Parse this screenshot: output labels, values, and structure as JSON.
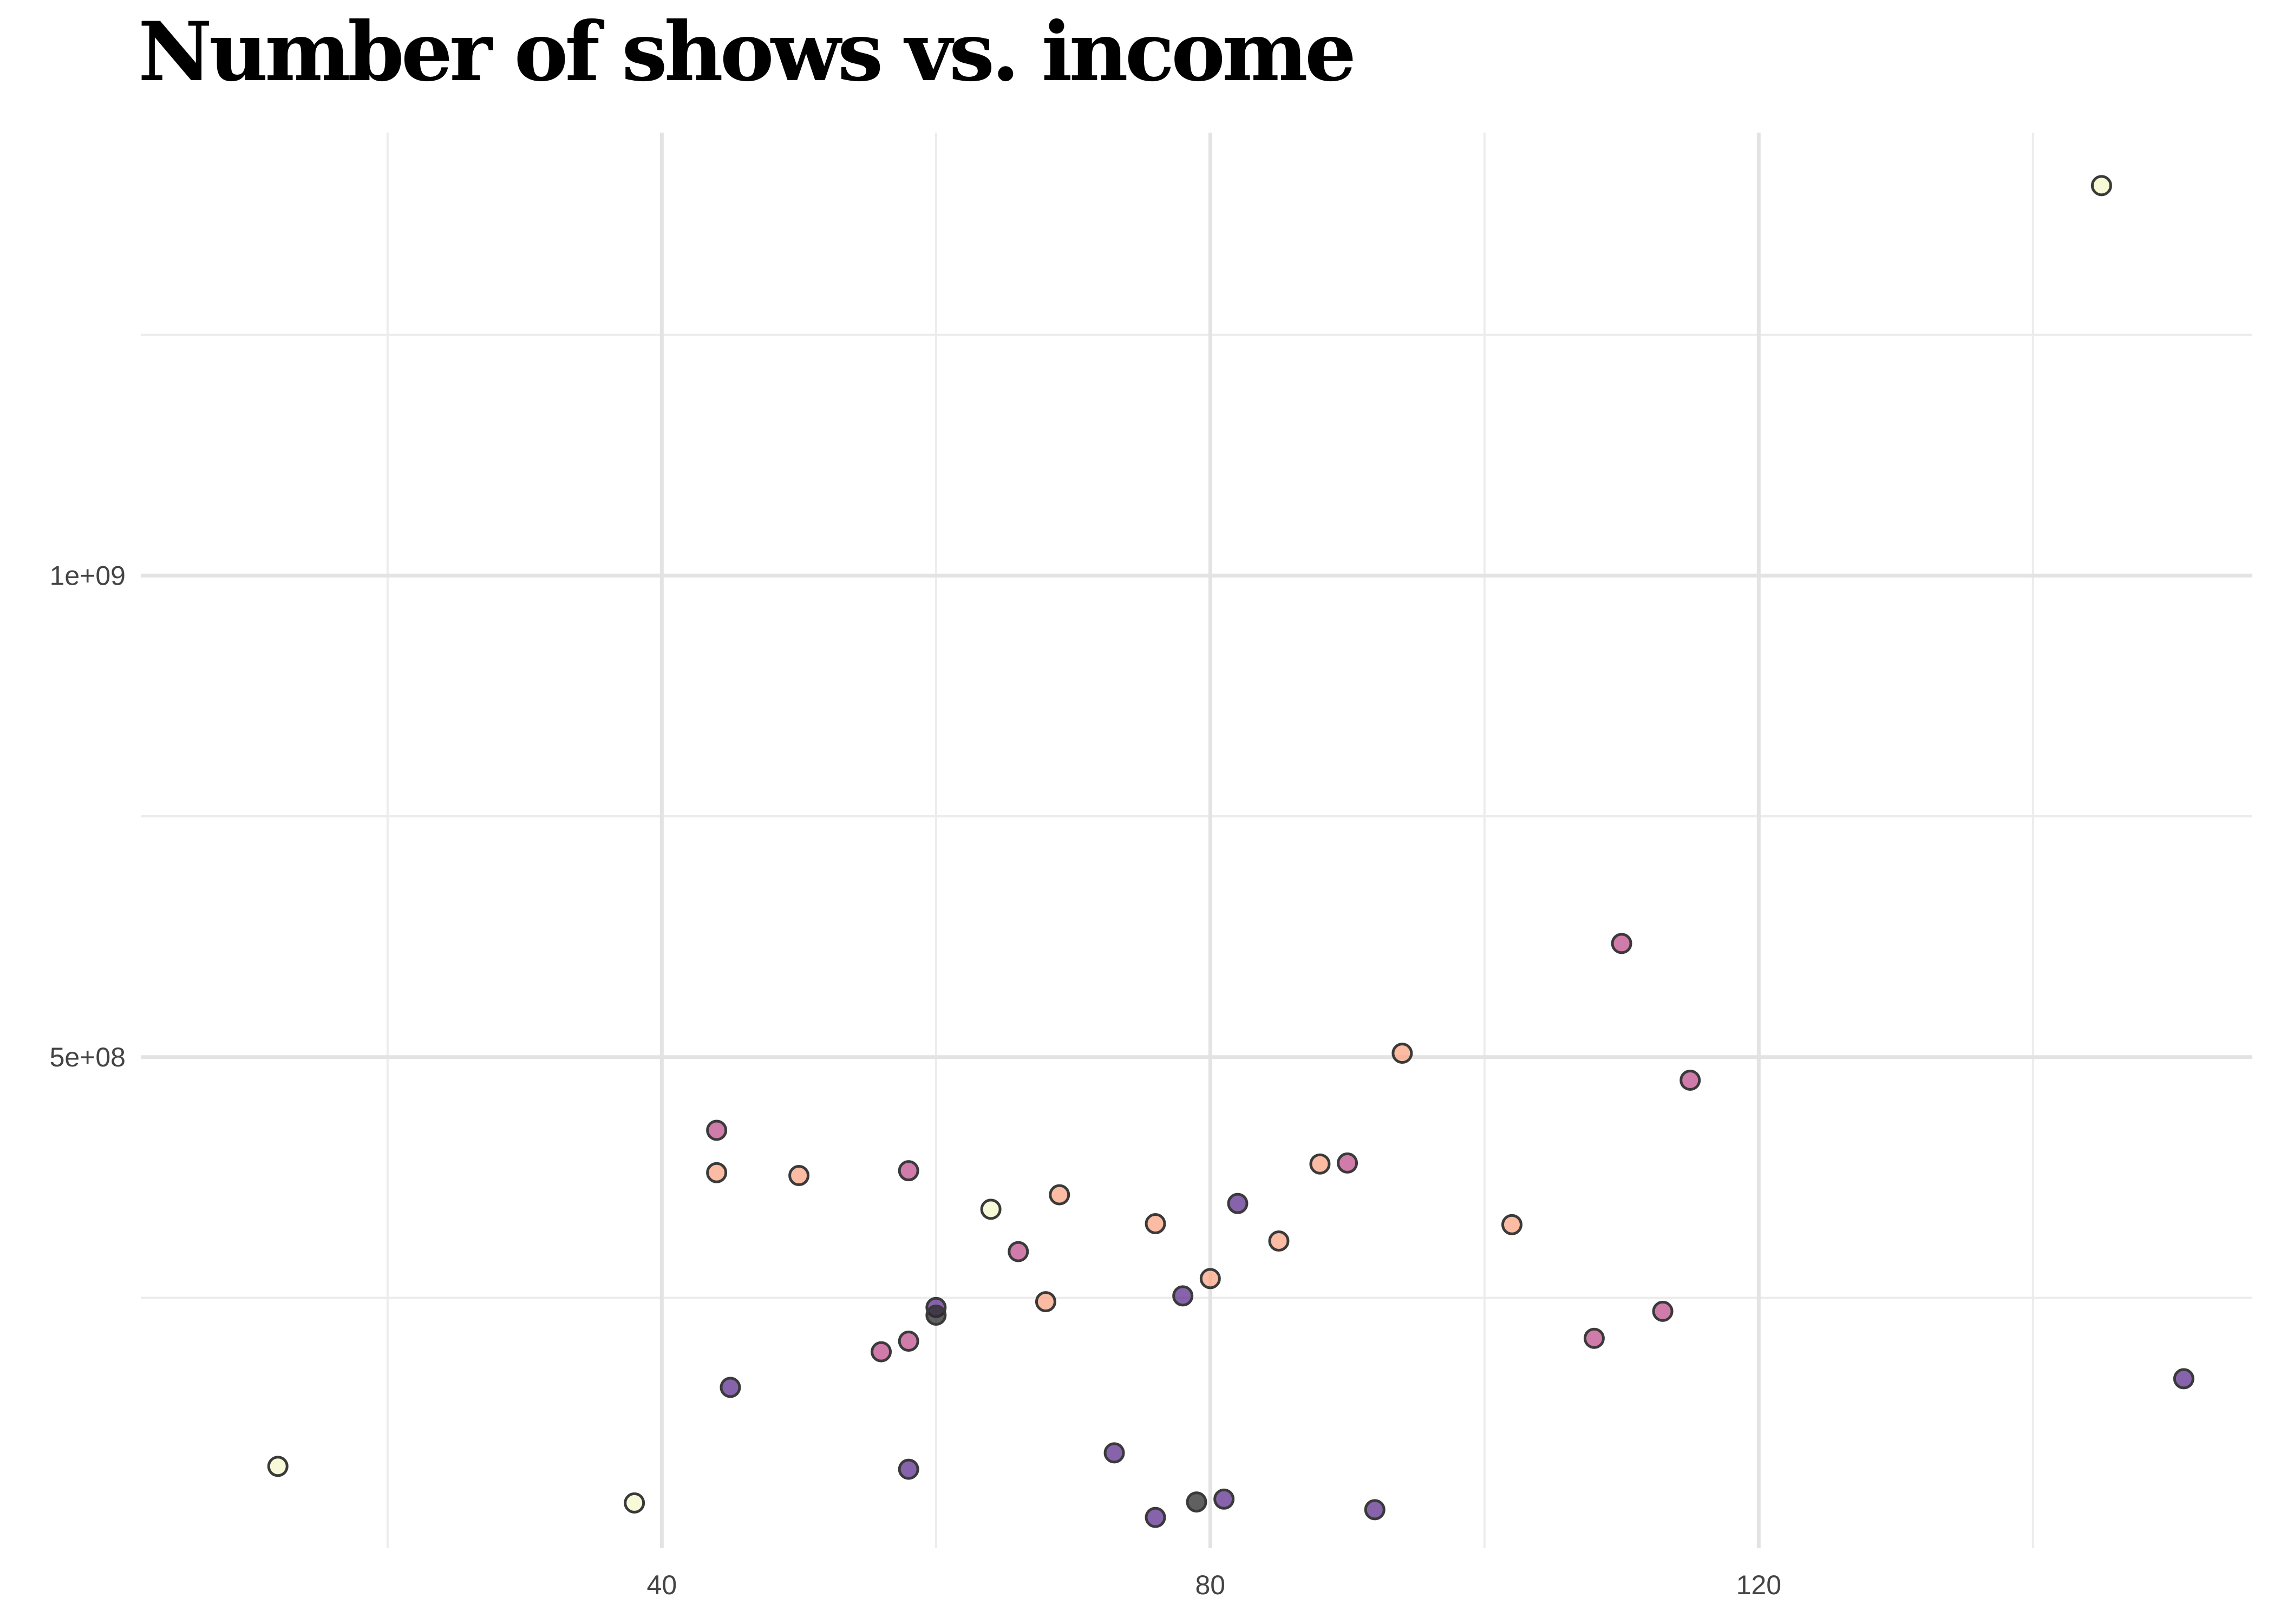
{
  "chart_data": {
    "type": "scatter",
    "title": "Number of shows vs. income",
    "xlabel": "",
    "ylabel": "",
    "xlim": [
      2,
      156
    ],
    "ylim": [
      -10000000,
      1460000000
    ],
    "grid": true,
    "legend": "none",
    "x_ticks": [
      {
        "value": 40,
        "label": "40"
      },
      {
        "value": 80,
        "label": "80"
      },
      {
        "value": 120,
        "label": "120"
      }
    ],
    "x_minor_ticks": [
      20,
      60,
      100,
      140
    ],
    "y_ticks": [
      {
        "value": 500000000,
        "label": "5e+08"
      },
      {
        "value": 1000000000,
        "label": "1e+09"
      }
    ],
    "y_minor_ticks": [
      250000000,
      750000000,
      1250000000
    ],
    "colors": {
      "cream": "#f6f7c8",
      "peach": "#f9a584",
      "pink": "#c0508e",
      "purple": "#5d2f8f",
      "dark": "#2b2b2b"
    },
    "series": [
      {
        "x": 12,
        "y": 75000000,
        "color": "cream"
      },
      {
        "x": 38,
        "y": 37000000,
        "color": "cream"
      },
      {
        "x": 64,
        "y": 342000000,
        "color": "cream"
      },
      {
        "x": 145,
        "y": 1405000000,
        "color": "cream"
      },
      {
        "x": 44,
        "y": 380000000,
        "color": "peach"
      },
      {
        "x": 50,
        "y": 377000000,
        "color": "peach"
      },
      {
        "x": 69,
        "y": 357000000,
        "color": "peach"
      },
      {
        "x": 68,
        "y": 246000000,
        "color": "peach"
      },
      {
        "x": 76,
        "y": 327000000,
        "color": "peach"
      },
      {
        "x": 80,
        "y": 270000000,
        "color": "peach"
      },
      {
        "x": 85,
        "y": 309000000,
        "color": "peach"
      },
      {
        "x": 88,
        "y": 389000000,
        "color": "peach"
      },
      {
        "x": 94,
        "y": 504000000,
        "color": "peach"
      },
      {
        "x": 102,
        "y": 326000000,
        "color": "peach"
      },
      {
        "x": 44,
        "y": 424000000,
        "color": "pink"
      },
      {
        "x": 58,
        "y": 382000000,
        "color": "pink"
      },
      {
        "x": 66,
        "y": 298000000,
        "color": "pink"
      },
      {
        "x": 56,
        "y": 194000000,
        "color": "pink"
      },
      {
        "x": 58,
        "y": 205000000,
        "color": "pink"
      },
      {
        "x": 90,
        "y": 390000000,
        "color": "pink"
      },
      {
        "x": 110,
        "y": 618000000,
        "color": "pink"
      },
      {
        "x": 115,
        "y": 476000000,
        "color": "pink"
      },
      {
        "x": 108,
        "y": 208000000,
        "color": "pink"
      },
      {
        "x": 113,
        "y": 236000000,
        "color": "pink"
      },
      {
        "x": 45,
        "y": 157000000,
        "color": "purple"
      },
      {
        "x": 58,
        "y": 72000000,
        "color": "purple"
      },
      {
        "x": 60,
        "y": 240000000,
        "color": "purple"
      },
      {
        "x": 73,
        "y": 89000000,
        "color": "purple"
      },
      {
        "x": 76,
        "y": 22000000,
        "color": "purple"
      },
      {
        "x": 78,
        "y": 252000000,
        "color": "purple"
      },
      {
        "x": 81,
        "y": 41000000,
        "color": "purple"
      },
      {
        "x": 82,
        "y": 348000000,
        "color": "purple"
      },
      {
        "x": 92,
        "y": 30000000,
        "color": "purple"
      },
      {
        "x": 151,
        "y": 166000000,
        "color": "purple"
      },
      {
        "x": 60,
        "y": 232000000,
        "color": "dark"
      },
      {
        "x": 79,
        "y": 38000000,
        "color": "dark"
      }
    ]
  }
}
